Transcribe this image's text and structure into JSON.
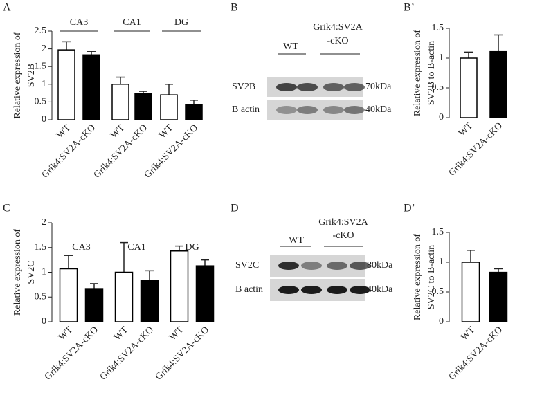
{
  "chart_data": [
    {
      "type": "bar",
      "panel": "A",
      "ylabel": [
        "Relative expression of",
        "SV2B"
      ],
      "categories": [
        "WT",
        "Grik4:SV2A-cKO",
        "WT",
        "Grik4:SV2A-cKO",
        "WT",
        "Grik4:SV2A-cKO"
      ],
      "groups": [
        "CA3",
        "CA1",
        "DG"
      ],
      "group_underline": true,
      "values": [
        1.97,
        1.83,
        1.0,
        0.73,
        0.7,
        0.42
      ],
      "errors": [
        0.23,
        0.1,
        0.2,
        0.07,
        0.3,
        0.13
      ],
      "colors": [
        "#ffffff",
        "#000000",
        "#ffffff",
        "#000000",
        "#ffffff",
        "#000000"
      ],
      "ylim": [
        0,
        2.5
      ],
      "yticks": [
        0,
        0.5,
        1,
        1.5,
        2,
        2.5
      ]
    },
    {
      "type": "bar",
      "panel": "B’",
      "ylabel": [
        "Relative expression of",
        "SV2B to B-actin"
      ],
      "categories": [
        "WT",
        "Grik4:SV2A-cKO"
      ],
      "values": [
        1.0,
        1.12
      ],
      "errors": [
        0.1,
        0.27
      ],
      "colors": [
        "#ffffff",
        "#000000"
      ],
      "ylim": [
        0,
        1.5
      ],
      "yticks": [
        0,
        0.5,
        1,
        1.5
      ]
    },
    {
      "type": "bar",
      "panel": "C",
      "ylabel": [
        "Relative expression of",
        "SV2C"
      ],
      "categories": [
        "WT",
        "Grik4:SV2A-cKO",
        "WT",
        "Grik4:SV2A-cKO",
        "WT",
        "Grik4:SV2A-cKO"
      ],
      "groups": [
        "CA3",
        "CA1",
        "DG"
      ],
      "group_underline": false,
      "values": [
        1.07,
        0.67,
        1.0,
        0.83,
        1.43,
        1.13
      ],
      "errors": [
        0.27,
        0.1,
        0.6,
        0.2,
        0.1,
        0.12
      ],
      "colors": [
        "#ffffff",
        "#000000",
        "#ffffff",
        "#000000",
        "#ffffff",
        "#000000"
      ],
      "ylim": [
        0,
        2
      ],
      "yticks": [
        0,
        0.5,
        1,
        1.5,
        2
      ]
    },
    {
      "type": "bar",
      "panel": "D’",
      "ylabel": [
        "Relative expression of",
        "SV2C to B-actin"
      ],
      "categories": [
        "WT",
        "Grik4:SV2A-cKO"
      ],
      "values": [
        1.0,
        0.83
      ],
      "errors": [
        0.2,
        0.06
      ],
      "colors": [
        "#ffffff",
        "#000000"
      ],
      "ylim": [
        0,
        1.5
      ],
      "yticks": [
        0,
        0.5,
        1,
        1.5
      ]
    }
  ],
  "blots": [
    {
      "panel": "B",
      "groups": [
        [
          "WT"
        ],
        [
          "Grik4:SV2A",
          "-cKO"
        ]
      ],
      "rows": [
        {
          "protein": "SV2B",
          "size": "70kDa"
        },
        {
          "protein": "B actin",
          "size": "40kDa"
        }
      ]
    },
    {
      "panel": "D",
      "groups": [
        [
          "WT"
        ],
        [
          "Grik4:SV2A",
          "-cKO"
        ]
      ],
      "rows": [
        {
          "protein": "SV2C",
          "size": "80kDa"
        },
        {
          "protein": "B actin",
          "size": "40kDa"
        }
      ]
    }
  ]
}
